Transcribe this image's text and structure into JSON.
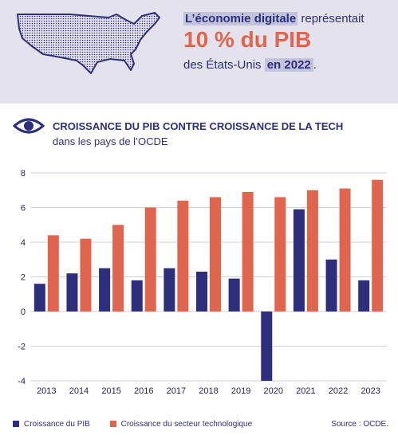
{
  "banner": {
    "line1_highlight": "L’économie digitale",
    "line1_rest": " représentait",
    "big_figure": "10 % du PIB",
    "line3_text": "des États-Unis ",
    "line3_highlight": "en 2022",
    "line3_end": "."
  },
  "icons": {
    "map": "usa-map-icon",
    "eye": "eye-icon"
  },
  "colors": {
    "navy": "#2e2f7c",
    "coral": "#e0654f",
    "banner_bg": "#e4e2ec"
  },
  "legend": {
    "pib": "Croissance du PIB",
    "tech": "Croissance du secteur technologique"
  },
  "source": "Source : OCDE.",
  "chart_data": {
    "type": "bar",
    "title": "CROISSANCE DU PIB CONTRE CROISSANCE DE LA TECH",
    "subtitle": "dans les pays de l’OCDE",
    "categories": [
      "2013",
      "2014",
      "2015",
      "2016",
      "2017",
      "2018",
      "2019",
      "2020",
      "2021",
      "2022",
      "2023"
    ],
    "series": [
      {
        "name": "Croissance du PIB",
        "color": "#2e2f7c",
        "values": [
          1.6,
          2.2,
          2.5,
          1.8,
          2.5,
          2.3,
          1.9,
          -4.0,
          5.9,
          3.0,
          1.8
        ]
      },
      {
        "name": "Croissance du secteur technologique",
        "color": "#e0654f",
        "values": [
          4.4,
          4.2,
          5.0,
          6.0,
          6.4,
          6.6,
          6.9,
          6.6,
          7.0,
          7.1,
          7.6
        ]
      }
    ],
    "yticks": [
      "8",
      "6",
      "4",
      "2",
      "0",
      "-2",
      "-4"
    ],
    "ylim": [
      -4,
      8
    ],
    "grid": true,
    "legend_position": "bottom-left"
  }
}
